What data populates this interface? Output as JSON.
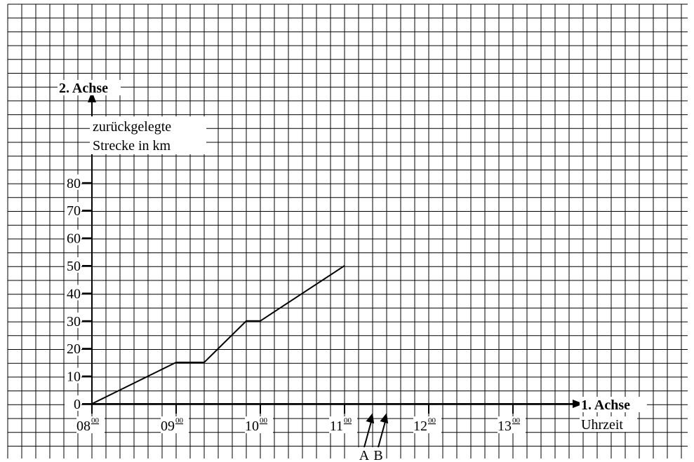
{
  "chart_data": {
    "type": "line",
    "x_axis": {
      "title": "1. Achse",
      "label": "Uhrzeit",
      "ticks": [
        {
          "hour": "08",
          "min": "00"
        },
        {
          "hour": "09",
          "min": "00"
        },
        {
          "hour": "10",
          "min": "00"
        },
        {
          "hour": "11",
          "min": "00"
        },
        {
          "hour": "12",
          "min": "00"
        },
        {
          "hour": "13",
          "min": "00"
        }
      ]
    },
    "y_axis": {
      "title": "2. Achse",
      "label_lines": [
        "zurückgelegte",
        "Strecke in km"
      ],
      "ticks": [
        "0",
        "10",
        "20",
        "30",
        "40",
        "50",
        "60",
        "70",
        "80"
      ]
    },
    "series": [
      {
        "points": [
          {
            "x": "08:00",
            "y": 0
          },
          {
            "x": "09:00",
            "y": 15
          },
          {
            "x": "09:20",
            "y": 15
          },
          {
            "x": "09:50",
            "y": 30
          },
          {
            "x": "10:00",
            "y": 30
          },
          {
            "x": "11:00",
            "y": 50
          }
        ]
      }
    ],
    "markers": [
      {
        "label": "A",
        "x": "11:20"
      },
      {
        "label": "B",
        "x": "11:30"
      }
    ],
    "grid": true
  }
}
